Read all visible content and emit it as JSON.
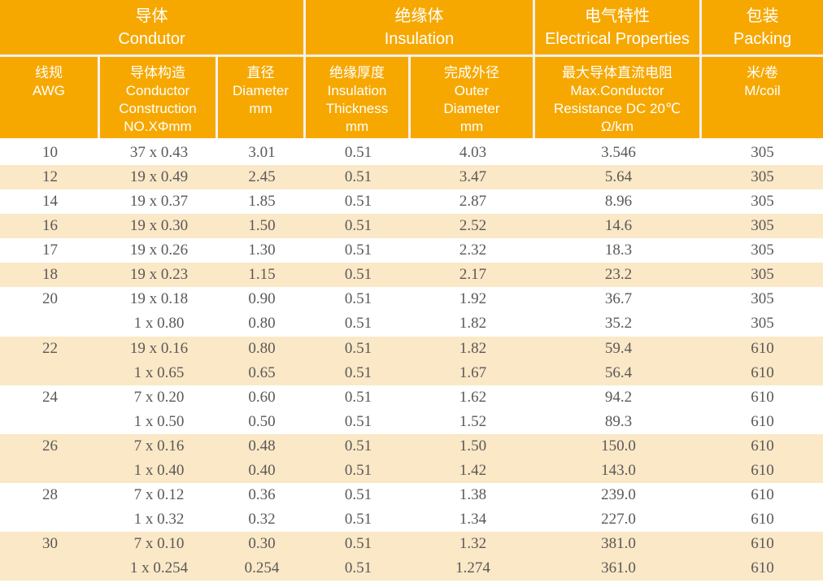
{
  "colors": {
    "header_bg": "#F6A800",
    "row_alt_bg": "#FAE8C7",
    "row_bg": "#FFFFFF",
    "header_text": "#FFFFFF",
    "data_text": "#5B5857",
    "divider": "#F3F1EC",
    "page_bg": "#FFFFFF"
  },
  "table": {
    "group_headers": [
      {
        "zh": "导体",
        "en": "Condutor"
      },
      {
        "zh": "绝缘体",
        "en": "Insulation"
      },
      {
        "zh": "电气特性",
        "en": "Electrical Properties"
      },
      {
        "zh": "包装",
        "en": "Packing"
      }
    ],
    "column_headers": [
      [
        "线规",
        "AWG"
      ],
      [
        "导体构造",
        "Conductor",
        "Construction",
        "NO.XΦmm"
      ],
      [
        "直径",
        "Diameter",
        "mm"
      ],
      [
        "绝缘厚度",
        "Insulation",
        "Thickness",
        "mm"
      ],
      [
        "完成外径",
        "Outer",
        "Diameter",
        "mm"
      ],
      [
        "最大导体直流电阻",
        "Max.Conductor",
        "Resistance DC 20℃",
        "Ω/km"
      ],
      [
        "米/卷",
        "M/coil"
      ]
    ],
    "rows": [
      {
        "awg": "10",
        "construction": "37 x 0.43",
        "diameter": "3.01",
        "thickness": "0.51",
        "outer": "4.03",
        "resistance": "3.546",
        "coil": "305",
        "shaded": false
      },
      {
        "awg": "12",
        "construction": "19 x 0.49",
        "diameter": "2.45",
        "thickness": "0.51",
        "outer": "3.47",
        "resistance": "5.64",
        "coil": "305",
        "shaded": true
      },
      {
        "awg": "14",
        "construction": "19 x 0.37",
        "diameter": "1.85",
        "thickness": "0.51",
        "outer": "2.87",
        "resistance": "8.96",
        "coil": "305",
        "shaded": false
      },
      {
        "awg": "16",
        "construction": "19 x 0.30",
        "diameter": "1.50",
        "thickness": "0.51",
        "outer": "2.52",
        "resistance": "14.6",
        "coil": "305",
        "shaded": true
      },
      {
        "awg": "17",
        "construction": "19 x 0.26",
        "diameter": "1.30",
        "thickness": "0.51",
        "outer": "2.32",
        "resistance": "18.3",
        "coil": "305",
        "shaded": false
      },
      {
        "awg": "18",
        "construction": "19 x 0.23",
        "diameter": "1.15",
        "thickness": "0.51",
        "outer": "2.17",
        "resistance": "23.2",
        "coil": "305",
        "shaded": true
      },
      {
        "awg": "20",
        "construction": "19 x 0.18",
        "diameter": "0.90",
        "thickness": "0.51",
        "outer": "1.92",
        "resistance": "36.7",
        "coil": "305",
        "shaded": false
      },
      {
        "awg": "",
        "construction": "1 x 0.80",
        "diameter": "0.80",
        "thickness": "0.51",
        "outer": "1.82",
        "resistance": "35.2",
        "coil": "305",
        "shaded": false
      },
      {
        "awg": "22",
        "construction": "19 x 0.16",
        "diameter": "0.80",
        "thickness": "0.51",
        "outer": "1.82",
        "resistance": "59.4",
        "coil": "610",
        "shaded": true
      },
      {
        "awg": "",
        "construction": "1 x 0.65",
        "diameter": "0.65",
        "thickness": "0.51",
        "outer": "1.67",
        "resistance": "56.4",
        "coil": "610",
        "shaded": true
      },
      {
        "awg": "24",
        "construction": "7 x 0.20",
        "diameter": "0.60",
        "thickness": "0.51",
        "outer": "1.62",
        "resistance": "94.2",
        "coil": "610",
        "shaded": false
      },
      {
        "awg": "",
        "construction": "1 x 0.50",
        "diameter": "0.50",
        "thickness": "0.51",
        "outer": "1.52",
        "resistance": "89.3",
        "coil": "610",
        "shaded": false
      },
      {
        "awg": "26",
        "construction": "7 x 0.16",
        "diameter": "0.48",
        "thickness": "0.51",
        "outer": "1.50",
        "resistance": "150.0",
        "coil": "610",
        "shaded": true
      },
      {
        "awg": "",
        "construction": "1 x 0.40",
        "diameter": "0.40",
        "thickness": "0.51",
        "outer": "1.42",
        "resistance": "143.0",
        "coil": "610",
        "shaded": true
      },
      {
        "awg": "28",
        "construction": "7 x 0.12",
        "diameter": "0.36",
        "thickness": "0.51",
        "outer": "1.38",
        "resistance": "239.0",
        "coil": "610",
        "shaded": false
      },
      {
        "awg": "",
        "construction": "1 x 0.32",
        "diameter": "0.32",
        "thickness": "0.51",
        "outer": "1.34",
        "resistance": "227.0",
        "coil": "610",
        "shaded": false
      },
      {
        "awg": "30",
        "construction": "7 x 0.10",
        "diameter": "0.30",
        "thickness": "0.51",
        "outer": "1.32",
        "resistance": "381.0",
        "coil": "610",
        "shaded": true
      },
      {
        "awg": "",
        "construction": "1 x 0.254",
        "diameter": "0.254",
        "thickness": "0.51",
        "outer": "1.274",
        "resistance": "361.0",
        "coil": "610",
        "shaded": true
      }
    ]
  }
}
